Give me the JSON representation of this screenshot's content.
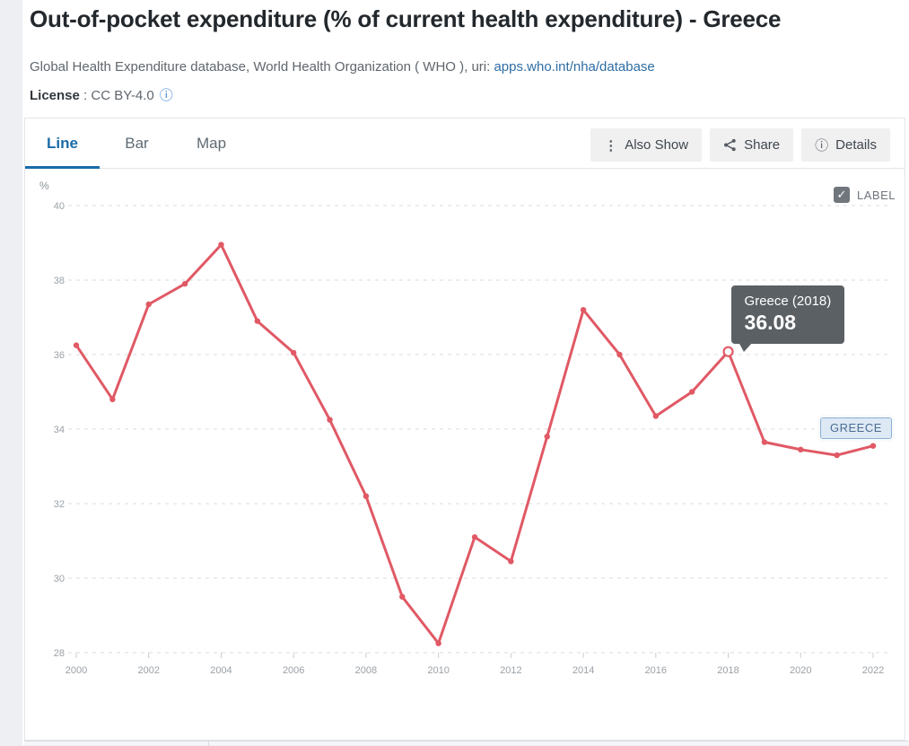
{
  "page": {
    "title": "Out-of-pocket expenditure (% of current health expenditure) - Greece",
    "source_prefix": "Global Health Expenditure database, World Health Organization ( WHO ), uri: ",
    "source_link": "apps.who.int/nha/database",
    "license_label": "License",
    "license_separator": " : ",
    "license_value": "CC BY-4.0",
    "license_info_glyph": "ⓘ"
  },
  "toolbar": {
    "tabs": [
      {
        "label": "Line",
        "active": true
      },
      {
        "label": "Bar",
        "active": false
      },
      {
        "label": "Map",
        "active": false
      }
    ],
    "buttons": [
      {
        "label": "Also Show",
        "icon": "kebab-icon",
        "glyph": "⋮"
      },
      {
        "label": "Share",
        "icon": "share-icon",
        "glyph": ""
      },
      {
        "label": "Details",
        "icon": "info-icon",
        "glyph": "ⓘ"
      }
    ]
  },
  "chart_controls": {
    "label_checkbox": {
      "label": "LABEL",
      "checked": true,
      "check_glyph": "✓"
    }
  },
  "tooltip": {
    "title": "Greece (2018)",
    "value": "36.08"
  },
  "series_tag": "GREECE",
  "colors": {
    "line": "#e05965",
    "grid": "#d8dbde",
    "axis_text": "#9aa1a7",
    "tick": "#c8ccd0",
    "tab_active": "#1a6ca8",
    "link": "#2e6da4",
    "tooltip_bg": "#5b6065"
  },
  "chart_data": {
    "type": "line",
    "title": "Out-of-pocket expenditure (% of current health expenditure) - Greece",
    "xlabel": "",
    "ylabel": "%",
    "ylim": [
      28,
      40
    ],
    "ytick_step": 2,
    "grid": "horizontal-dashed",
    "legend_position": "none",
    "x": [
      2000,
      2001,
      2002,
      2003,
      2004,
      2005,
      2006,
      2007,
      2008,
      2009,
      2010,
      2011,
      2012,
      2013,
      2014,
      2015,
      2016,
      2017,
      2018,
      2019,
      2020,
      2021,
      2022
    ],
    "xticks": [
      2000,
      2002,
      2004,
      2006,
      2008,
      2010,
      2012,
      2014,
      2016,
      2018,
      2020,
      2022
    ],
    "series": [
      {
        "name": "Greece",
        "color": "#e05965",
        "values": [
          36.25,
          34.8,
          37.35,
          37.9,
          38.95,
          36.9,
          36.05,
          34.25,
          32.2,
          29.5,
          28.25,
          31.1,
          30.45,
          33.8,
          37.2,
          36.0,
          34.35,
          35.0,
          36.08,
          33.65,
          33.45,
          33.3,
          33.55
        ]
      }
    ],
    "highlight": {
      "year": 2018,
      "value": 36.08,
      "label": "Greece (2018)",
      "display": "36.08"
    }
  }
}
